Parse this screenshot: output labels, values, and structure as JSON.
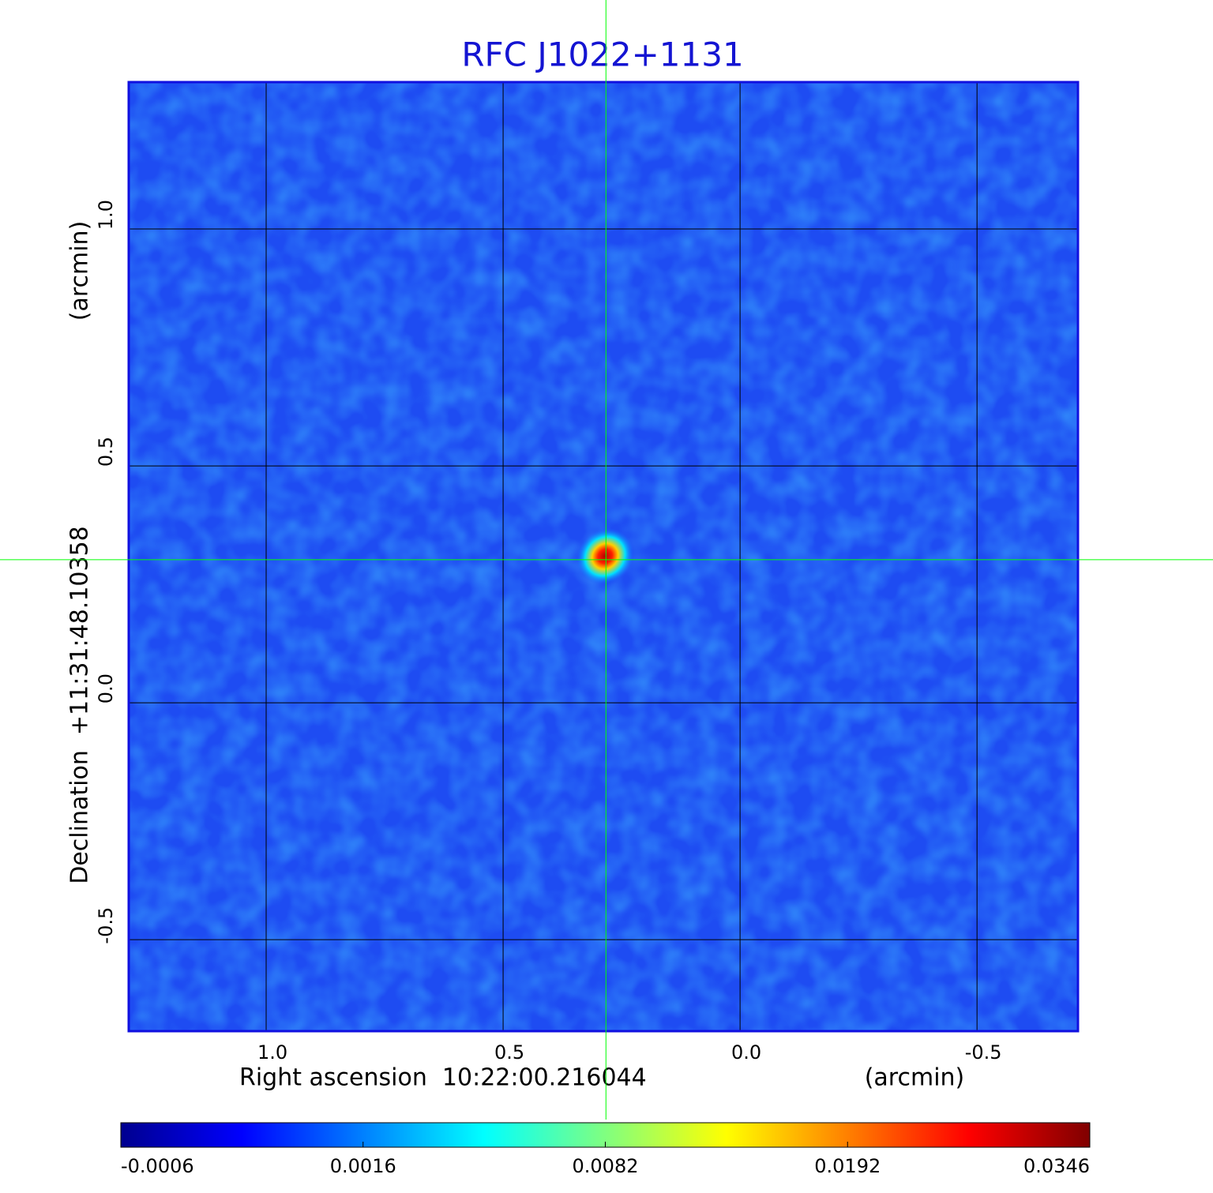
{
  "chart_data": {
    "type": "image",
    "title": "RFC J1022+1131",
    "xlabel": "Right ascension  10:22:00.216044",
    "xunit": "(arcmin)",
    "ylabel": "Declination  +11:31:48.10358",
    "yunit": "(arcmin)",
    "xlim": [
      1.29,
      -0.713
    ],
    "ylim": [
      -0.693,
      1.31
    ],
    "xticks": [
      {
        "value": 1,
        "label": "1.0"
      },
      0.5,
      {
        "value": 0,
        "label": "0.0"
      },
      -0.5
    ],
    "yticks": [
      {
        "value": 1,
        "label": "1.0"
      },
      0.5,
      {
        "value": 0,
        "label": "0.0"
      },
      -0.5
    ],
    "grid": true,
    "crosshair": {
      "x": 0.283,
      "y": 0.302,
      "color": "#00ff00"
    },
    "colorbar": {
      "ticks": [
        -0.0006,
        0.0016,
        0.0082,
        0.0192,
        0.0346
      ],
      "colors": [
        "#00008f",
        "#0000ff",
        "#0080ff",
        "#00ffff",
        "#80ff80",
        "#ffff00",
        "#ff8000",
        "#ff0000",
        "#800000"
      ]
    }
  }
}
